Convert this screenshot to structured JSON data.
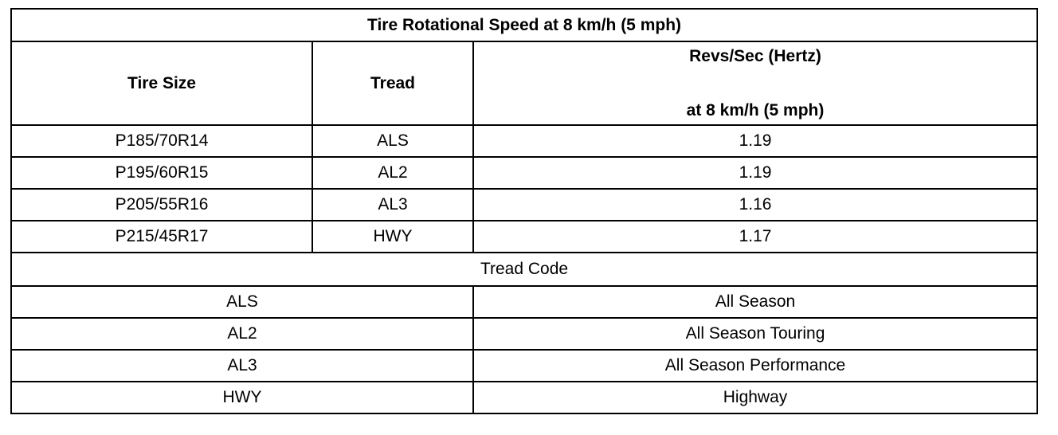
{
  "title": "Tire Rotational Speed at 8 km/h (5 mph)",
  "headers": {
    "tire_size": "Tire Size",
    "tread": "Tread",
    "hz_line1": "Revs/Sec (Hertz)",
    "hz_line2": "at 8 km/h (5 mph)"
  },
  "rows": [
    {
      "size": "P185/70R14",
      "tread": "ALS",
      "hz": "1.19"
    },
    {
      "size": "P195/60R15",
      "tread": "AL2",
      "hz": "1.19"
    },
    {
      "size": "P205/55R16",
      "tread": "AL3",
      "hz": "1.16"
    },
    {
      "size": "P215/45R17",
      "tread": "HWY",
      "hz": "1.17"
    }
  ],
  "tread_code_title": "Tread Code",
  "codes": [
    {
      "code": "ALS",
      "description": "All Season"
    },
    {
      "code": "AL2",
      "description": "All Season Touring"
    },
    {
      "code": "AL3",
      "description": "All Season Performance"
    },
    {
      "code": "HWY",
      "description": "Highway"
    }
  ]
}
